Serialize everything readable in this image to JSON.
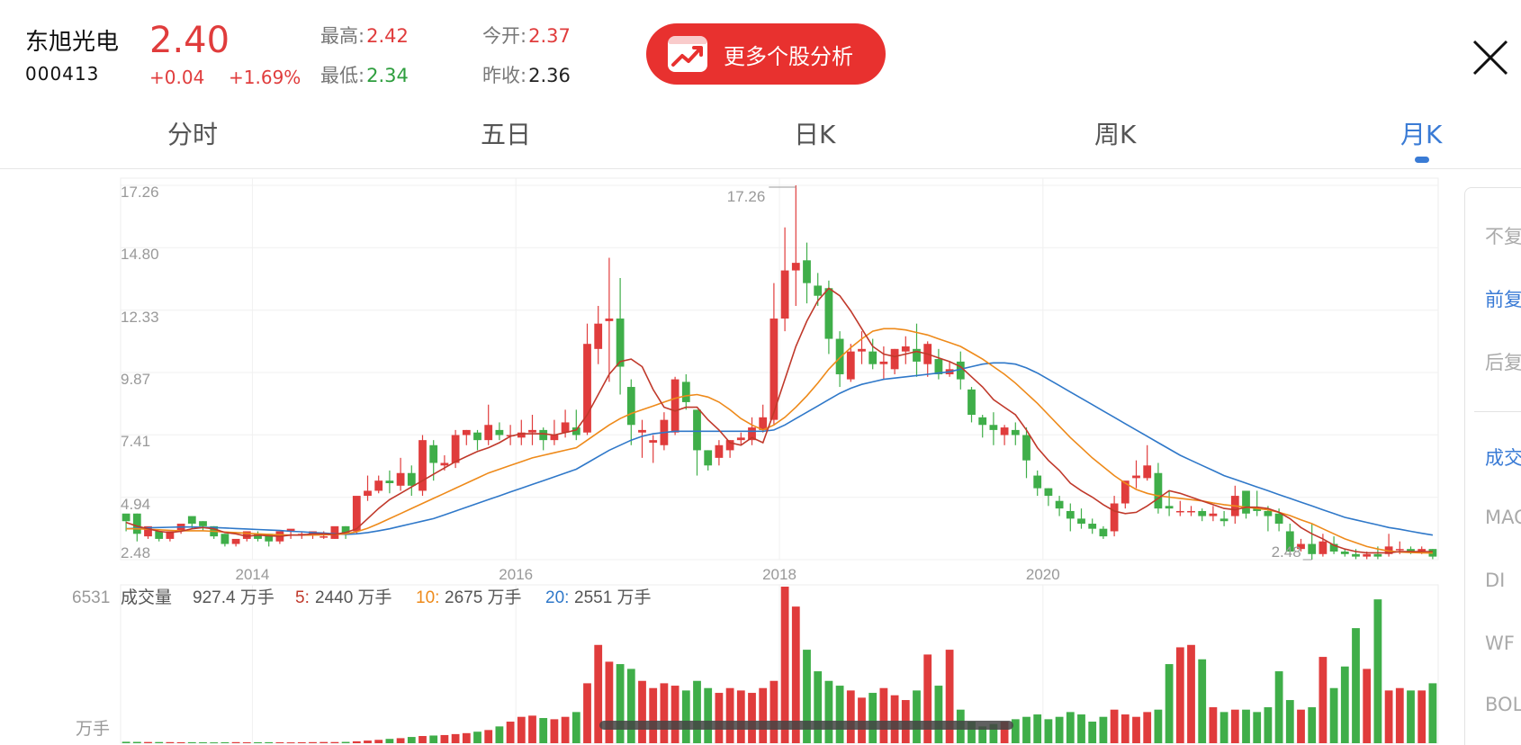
{
  "stock": {
    "name": "东旭光电",
    "code": "000413",
    "price": "2.40",
    "change": "+0.04",
    "change_pct": "+1.69%",
    "high_label": "最高:",
    "high": "2.42",
    "low_label": "最低:",
    "low": "2.34",
    "open_label": "今开:",
    "open": "2.37",
    "prev_close_label": "昨收:",
    "prev_close": "2.36"
  },
  "analysis_button": {
    "label": "更多个股分析",
    "icon": "stock-analysis-app-icon"
  },
  "close_icon": "close-icon",
  "tabs": [
    {
      "label": "分时"
    },
    {
      "label": "五日"
    },
    {
      "label": "日K"
    },
    {
      "label": "周K"
    },
    {
      "label": "月K",
      "active": true
    }
  ],
  "side_panel": {
    "items": [
      "不复",
      "前复",
      "后复",
      "成交",
      "MAC",
      "DI",
      "WF",
      "BOL"
    ],
    "selected": [
      "前复",
      "成交"
    ]
  },
  "volume_legend": {
    "title": "成交量",
    "value": "927.4 万手",
    "ma5_label": "5:",
    "ma5": "2440 万手",
    "ma10_label": "10:",
    "ma10": "2675 万手",
    "ma20_label": "20:",
    "ma20": "2551 万手",
    "max": "6531",
    "unit": "万手"
  },
  "colors": {
    "up": "#e03c3c",
    "down": "#3fae49",
    "ma5": "#c0392b",
    "ma10": "#ee8a1a",
    "ma20": "#2f78c9",
    "accent": "#3a7bd5"
  },
  "chart_data": {
    "type": "candlestick",
    "period": "monthly",
    "y_ticks": [
      "17.26",
      "14.80",
      "12.33",
      "9.87",
      "7.41",
      "4.94",
      "2.48"
    ],
    "ylim": [
      2.48,
      17.26
    ],
    "x_ticks": [
      "2014",
      "2016",
      "2018",
      "2020"
    ],
    "max_marker": "17.26",
    "min_marker": "2.48",
    "candles": [
      [
        4.0,
        4.3,
        4.0,
        3.6
      ],
      [
        4.3,
        4.3,
        3.5,
        3.2
      ],
      [
        3.6,
        3.4,
        3.8,
        3.3
      ],
      [
        3.6,
        3.6,
        3.3,
        3.2
      ],
      [
        3.4,
        3.3,
        3.6,
        3.2
      ],
      [
        3.6,
        3.6,
        3.9,
        3.5
      ],
      [
        3.9,
        4.2,
        3.9,
        3.7
      ],
      [
        4.0,
        4.0,
        3.8,
        3.6
      ],
      [
        3.8,
        3.8,
        3.4,
        3.3
      ],
      [
        3.5,
        3.5,
        3.1,
        3.0
      ],
      [
        3.2,
        3.1,
        3.3,
        3.0
      ],
      [
        3.4,
        3.3,
        3.6,
        3.2
      ],
      [
        3.6,
        3.5,
        3.3,
        3.2
      ],
      [
        3.5,
        3.5,
        3.2,
        3.0
      ],
      [
        3.3,
        3.2,
        3.6,
        3.1
      ],
      [
        3.6,
        3.6,
        3.7,
        3.3
      ],
      [
        3.6,
        3.5,
        3.5,
        3.3
      ],
      [
        3.5,
        3.5,
        3.6,
        3.3
      ],
      [
        3.6,
        3.4,
        3.4,
        3.3
      ],
      [
        3.4,
        3.3,
        3.8,
        3.3
      ],
      [
        3.8,
        3.8,
        3.5,
        3.3
      ],
      [
        3.8,
        3.6,
        5.0,
        3.5
      ],
      [
        5.8,
        5.0,
        5.2,
        4.8
      ],
      [
        5.8,
        5.2,
        5.6,
        5.1
      ],
      [
        6.0,
        5.6,
        5.5,
        5.1
      ],
      [
        6.5,
        5.4,
        5.9,
        5.2
      ],
      [
        6.2,
        5.9,
        5.4,
        5.0
      ],
      [
        7.4,
        5.2,
        7.2,
        5.0
      ],
      [
        7.2,
        7.0,
        6.3,
        5.6
      ],
      [
        6.6,
        6.2,
        6.3,
        6.0
      ],
      [
        7.6,
        6.3,
        7.4,
        6.1
      ],
      [
        7.6,
        7.4,
        7.6,
        7.0
      ],
      [
        7.6,
        7.5,
        7.2,
        6.8
      ],
      [
        8.6,
        7.2,
        7.8,
        7.0
      ],
      [
        7.9,
        7.6,
        7.4,
        7.2
      ],
      [
        7.8,
        7.4,
        7.4,
        7.0
      ],
      [
        8.0,
        7.3,
        7.5,
        7.0
      ],
      [
        8.2,
        7.5,
        7.6,
        7.0
      ],
      [
        7.7,
        7.6,
        7.2,
        6.8
      ],
      [
        8.0,
        7.2,
        7.4,
        7.0
      ],
      [
        8.4,
        7.5,
        7.9,
        7.3
      ],
      [
        8.4,
        7.7,
        7.4,
        7.2
      ],
      [
        11.8,
        7.5,
        11.0,
        7.4
      ],
      [
        12.5,
        10.8,
        11.8,
        10.2
      ],
      [
        14.4,
        11.9,
        12.0,
        9.5
      ],
      [
        13.6,
        12.0,
        10.1,
        9.0
      ],
      [
        9.6,
        9.3,
        7.8,
        7.0
      ],
      [
        8.0,
        7.5,
        7.6,
        6.5
      ],
      [
        7.4,
        7.1,
        7.2,
        6.3
      ],
      [
        8.3,
        7.0,
        8.0,
        6.8
      ],
      [
        9.7,
        7.5,
        9.6,
        7.4
      ],
      [
        9.8,
        9.5,
        8.7,
        8.4
      ],
      [
        8.4,
        8.4,
        6.8,
        5.8
      ],
      [
        6.8,
        6.8,
        6.2,
        6.0
      ],
      [
        7.2,
        6.5,
        7.0,
        6.2
      ],
      [
        7.2,
        6.8,
        7.2,
        6.5
      ],
      [
        7.5,
        7.2,
        7.3,
        7.0
      ],
      [
        8.1,
        7.2,
        7.7,
        7.0
      ],
      [
        8.6,
        7.6,
        8.1,
        7.5
      ],
      [
        13.4,
        8.0,
        12.0,
        7.8
      ],
      [
        15.6,
        12.0,
        13.9,
        11.5
      ],
      [
        17.26,
        13.9,
        14.2,
        12.5
      ],
      [
        15.0,
        14.3,
        13.4,
        12.6
      ],
      [
        13.8,
        13.3,
        12.9,
        12.5
      ],
      [
        13.5,
        13.2,
        11.2,
        10.6
      ],
      [
        11.5,
        11.2,
        9.8,
        9.3
      ],
      [
        11.0,
        9.6,
        10.7,
        9.5
      ],
      [
        11.5,
        10.7,
        10.8,
        10.2
      ],
      [
        11.2,
        10.7,
        10.2,
        10.0
      ],
      [
        10.9,
        10.2,
        10.3,
        9.6
      ],
      [
        10.8,
        10.0,
        10.8,
        9.8
      ],
      [
        11.3,
        10.7,
        10.9,
        10.2
      ],
      [
        11.8,
        10.8,
        10.3,
        9.7
      ],
      [
        11.1,
        10.2,
        11.0,
        9.7
      ],
      [
        10.8,
        10.4,
        9.8,
        9.6
      ],
      [
        10.3,
        9.8,
        10.0,
        9.7
      ],
      [
        10.7,
        10.3,
        9.6,
        9.2
      ],
      [
        9.3,
        9.2,
        8.2,
        7.9
      ],
      [
        8.2,
        8.1,
        7.8,
        7.3
      ],
      [
        8.3,
        7.8,
        7.6,
        7.0
      ],
      [
        7.8,
        7.4,
        7.7,
        7.0
      ],
      [
        7.9,
        7.6,
        7.4,
        7.0
      ],
      [
        7.7,
        7.4,
        6.4,
        5.7
      ],
      [
        6.0,
        5.8,
        5.3,
        5.0
      ],
      [
        5.3,
        5.3,
        5.0,
        4.6
      ],
      [
        5.0,
        4.8,
        4.5,
        4.2
      ],
      [
        4.7,
        4.4,
        4.1,
        3.6
      ],
      [
        4.5,
        4.1,
        3.9,
        3.7
      ],
      [
        4.1,
        3.9,
        3.7,
        3.5
      ],
      [
        3.8,
        3.7,
        3.4,
        3.3
      ],
      [
        5.0,
        3.6,
        4.7,
        3.4
      ],
      [
        5.4,
        4.7,
        5.6,
        4.5
      ],
      [
        6.4,
        5.7,
        5.8,
        5.3
      ],
      [
        7.0,
        5.7,
        6.2,
        5.6
      ],
      [
        6.3,
        5.9,
        4.5,
        4.3
      ],
      [
        5.2,
        4.6,
        4.5,
        4.2
      ],
      [
        4.8,
        4.4,
        4.4,
        4.2
      ],
      [
        4.6,
        4.4,
        4.4,
        4.2
      ],
      [
        4.5,
        4.4,
        4.2,
        4.0
      ],
      [
        4.6,
        4.2,
        4.3,
        4.0
      ],
      [
        4.4,
        4.1,
        4.0,
        3.8
      ],
      [
        5.4,
        4.2,
        5.0,
        3.9
      ],
      [
        5.0,
        5.2,
        4.3,
        4.1
      ],
      [
        5.2,
        4.5,
        4.4,
        4.2
      ],
      [
        4.6,
        4.4,
        4.2,
        3.6
      ],
      [
        4.5,
        4.3,
        3.9,
        3.6
      ],
      [
        3.9,
        3.6,
        2.8,
        2.7
      ],
      [
        3.3,
        2.9,
        3.1,
        2.8
      ],
      [
        3.9,
        3.1,
        2.7,
        2.48
      ],
      [
        3.5,
        2.7,
        3.2,
        2.6
      ],
      [
        3.4,
        3.1,
        2.8,
        2.7
      ],
      [
        2.9,
        2.8,
        2.7,
        2.6
      ],
      [
        2.9,
        2.7,
        2.6,
        2.5
      ],
      [
        2.8,
        2.6,
        2.7,
        2.5
      ],
      [
        3.0,
        2.7,
        2.6,
        2.5
      ],
      [
        3.5,
        2.7,
        3.0,
        2.6
      ],
      [
        3.2,
        2.9,
        2.9,
        2.7
      ],
      [
        3.0,
        2.9,
        2.8,
        2.7
      ],
      [
        3.0,
        2.8,
        2.9,
        2.7
      ],
      [
        2.9,
        2.9,
        2.6,
        2.5
      ]
    ],
    "ma5": [
      3.95,
      3.8,
      3.7,
      3.6,
      3.55,
      3.6,
      3.7,
      3.75,
      3.7,
      3.55,
      3.5,
      3.4,
      3.45,
      3.42,
      3.4,
      3.45,
      3.45,
      3.5,
      3.5,
      3.48,
      3.55,
      3.7,
      4.1,
      4.5,
      4.85,
      5.1,
      5.35,
      5.6,
      5.85,
      6.1,
      6.35,
      6.55,
      6.75,
      6.9,
      7.1,
      7.35,
      7.45,
      7.45,
      7.45,
      7.4,
      7.5,
      7.6,
      8.2,
      9.0,
      9.8,
      10.3,
      10.4,
      10.1,
      9.2,
      8.5,
      8.35,
      8.5,
      8.5,
      8.0,
      7.6,
      7.1,
      7.0,
      7.3,
      7.1,
      8.3,
      9.6,
      10.9,
      11.9,
      12.7,
      13.2,
      12.9,
      12.3,
      11.6,
      10.9,
      10.6,
      10.5,
      10.6,
      10.7,
      10.6,
      10.45,
      10.3,
      10.1,
      9.7,
      9.3,
      8.8,
      8.5,
      8.2,
      7.6,
      6.9,
      6.4,
      6.0,
      5.5,
      5.2,
      4.95,
      4.65,
      4.4,
      4.3,
      4.35,
      4.6,
      4.9,
      5.2,
      5.1,
      4.95,
      4.8,
      4.65,
      4.5,
      4.45,
      4.55,
      4.55,
      4.5,
      4.35,
      4.1,
      3.75,
      3.5,
      3.3,
      3.05,
      2.9,
      2.8,
      2.75,
      2.75,
      2.75,
      2.8,
      2.8,
      2.8,
      2.8
    ],
    "ma10": [
      3.7,
      3.7,
      3.68,
      3.66,
      3.64,
      3.62,
      3.62,
      3.62,
      3.6,
      3.57,
      3.55,
      3.52,
      3.5,
      3.48,
      3.46,
      3.45,
      3.45,
      3.45,
      3.46,
      3.47,
      3.5,
      3.58,
      3.72,
      3.9,
      4.1,
      4.3,
      4.5,
      4.7,
      4.9,
      5.1,
      5.3,
      5.5,
      5.7,
      5.9,
      6.05,
      6.2,
      6.35,
      6.5,
      6.6,
      6.7,
      6.8,
      6.9,
      7.2,
      7.5,
      7.8,
      8.05,
      8.25,
      8.4,
      8.55,
      8.7,
      8.85,
      8.95,
      9.0,
      8.9,
      8.7,
      8.4,
      8.05,
      7.8,
      7.6,
      7.8,
      8.1,
      8.5,
      8.95,
      9.45,
      10.0,
      10.45,
      10.85,
      11.2,
      11.5,
      11.6,
      11.6,
      11.55,
      11.45,
      11.35,
      11.2,
      11.05,
      10.9,
      10.65,
      10.4,
      10.1,
      9.8,
      9.45,
      9.05,
      8.65,
      8.2,
      7.75,
      7.3,
      6.9,
      6.5,
      6.15,
      5.8,
      5.5,
      5.25,
      5.1,
      5.0,
      4.95,
      4.9,
      4.85,
      4.8,
      4.72,
      4.65,
      4.6,
      4.55,
      4.5,
      4.45,
      4.35,
      4.22,
      4.05,
      3.9,
      3.7,
      3.5,
      3.3,
      3.15,
      3.0,
      2.9,
      2.82,
      2.78,
      2.76,
      2.75,
      2.74
    ],
    "ma20": [
      3.7,
      3.72,
      3.74,
      3.75,
      3.76,
      3.77,
      3.77,
      3.76,
      3.75,
      3.73,
      3.71,
      3.69,
      3.67,
      3.65,
      3.63,
      3.6,
      3.58,
      3.55,
      3.53,
      3.5,
      3.48,
      3.5,
      3.55,
      3.62,
      3.7,
      3.8,
      3.9,
      4.0,
      4.1,
      4.25,
      4.4,
      4.55,
      4.7,
      4.85,
      5.0,
      5.15,
      5.3,
      5.45,
      5.6,
      5.75,
      5.9,
      6.05,
      6.3,
      6.55,
      6.8,
      7.0,
      7.2,
      7.35,
      7.45,
      7.5,
      7.55,
      7.55,
      7.55,
      7.55,
      7.55,
      7.55,
      7.55,
      7.55,
      7.55,
      7.6,
      7.8,
      8.05,
      8.3,
      8.55,
      8.8,
      9.05,
      9.25,
      9.4,
      9.5,
      9.6,
      9.65,
      9.7,
      9.75,
      9.8,
      9.85,
      9.9,
      10.0,
      10.1,
      10.2,
      10.25,
      10.25,
      10.2,
      10.05,
      9.85,
      9.6,
      9.35,
      9.1,
      8.85,
      8.6,
      8.35,
      8.1,
      7.85,
      7.6,
      7.35,
      7.1,
      6.85,
      6.6,
      6.4,
      6.2,
      6.0,
      5.8,
      5.65,
      5.5,
      5.35,
      5.2,
      5.05,
      4.9,
      4.75,
      4.6,
      4.45,
      4.3,
      4.15,
      4.05,
      3.95,
      3.85,
      3.75,
      3.68,
      3.6,
      3.52,
      3.45
    ],
    "volumes": [
      60,
      55,
      50,
      48,
      45,
      40,
      42,
      38,
      35,
      40,
      45,
      38,
      40,
      42,
      38,
      35,
      40,
      45,
      50,
      48,
      55,
      80,
      110,
      140,
      180,
      210,
      260,
      300,
      320,
      340,
      380,
      420,
      480,
      550,
      700,
      900,
      1100,
      1150,
      1050,
      1000,
      1100,
      1300,
      2500,
      4100,
      3400,
      3300,
      3100,
      2600,
      2300,
      2500,
      2400,
      2200,
      2600,
      2300,
      2100,
      2300,
      2200,
      2100,
      2300,
      2600,
      6531,
      5700,
      3900,
      3000,
      2600,
      2400,
      2200,
      1900,
      2100,
      2300,
      2000,
      1800,
      2200,
      3700,
      2400,
      3900,
      1400,
      900,
      700,
      800,
      900,
      1000,
      1100,
      1200,
      1000,
      1100,
      1300,
      1200,
      900,
      1100,
      1400,
      1200,
      1100,
      1300,
      1400,
      3300,
      4000,
      4100,
      3500,
      1500,
      1300,
      1400,
      1400,
      1300,
      1500,
      3000,
      1800,
      1400,
      1500,
      3600,
      2300,
      3200,
      4800,
      3100,
      6000,
      2200,
      2300,
      2200,
      2200,
      2500,
      2600,
      4000,
      4100,
      4300,
      2300,
      1500
    ]
  }
}
